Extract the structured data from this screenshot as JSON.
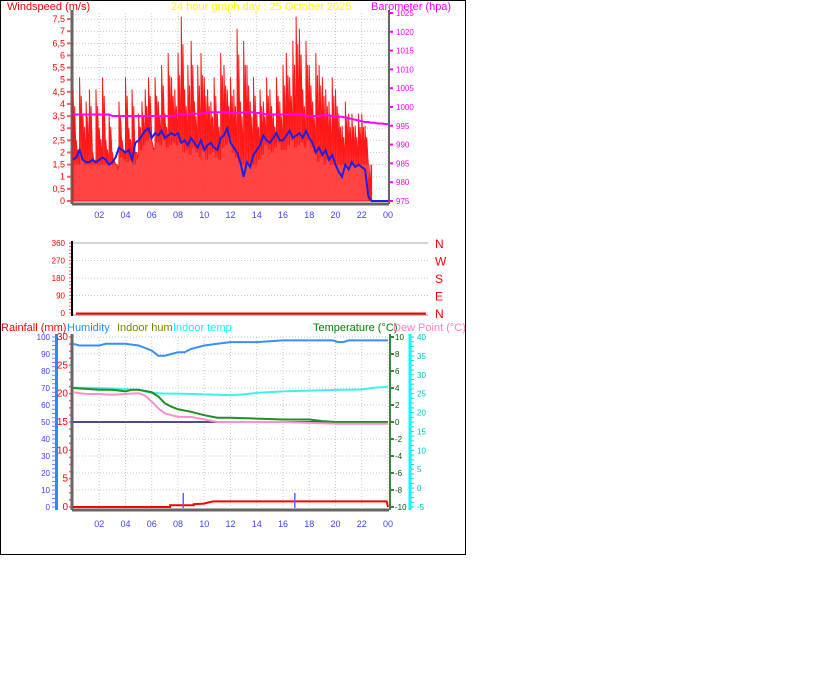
{
  "chart_data": [
    {
      "type": "line",
      "title": "24 hour graph day : 25 October 2025",
      "ylabel": "Windspeed (m/s)",
      "y2label": "Barometer (hpa)",
      "x_ticks": [
        "02",
        "04",
        "06",
        "08",
        "10",
        "12",
        "14",
        "16",
        "18",
        "20",
        "22",
        "00"
      ],
      "ylim": [
        0,
        7.75
      ],
      "y_ticks": [
        "0",
        "0,5",
        "1",
        "1,5",
        "2",
        "2,5",
        "3",
        "3,5",
        "4",
        "4,5",
        "5",
        "5,5",
        "6",
        "6,5",
        "7",
        "7,5"
      ],
      "y2lim": [
        975,
        1025
      ],
      "y2_ticks": [
        "975",
        "980",
        "985",
        "990",
        "995",
        "1000",
        "1005",
        "1010",
        "1015",
        "1020",
        "1025"
      ],
      "grid": true,
      "colors": {
        "gust": "#ff0000",
        "average": "#2020e0",
        "barometer": "#ff00ff"
      },
      "x_step_hours": 0.25,
      "series": [
        {
          "key": "gust",
          "values": [
            4.6,
            2.5,
            5.1,
            3.6,
            4.1,
            4.6,
            2.0,
            4.6,
            3.0,
            5.1,
            2.5,
            3.6,
            2.0,
            1.5,
            4.1,
            2.5,
            5.1,
            3.0,
            4.6,
            2.0,
            3.6,
            4.1,
            4.6,
            5.1,
            2.5,
            5.1,
            4.1,
            5.6,
            3.6,
            6.1,
            5.1,
            4.6,
            6.1,
            7.6,
            4.6,
            5.6,
            6.6,
            4.1,
            5.6,
            6.1,
            5.1,
            4.6,
            4.1,
            5.1,
            3.6,
            6.1,
            5.6,
            4.6,
            5.1,
            4.6,
            7.1,
            4.1,
            6.6,
            5.6,
            4.1,
            5.1,
            3.6,
            4.6,
            4.1,
            5.1,
            4.6,
            3.6,
            5.1,
            4.1,
            5.6,
            6.1,
            5.1,
            6.6,
            7.6,
            7.1,
            4.6,
            6.6,
            5.6,
            4.1,
            6.1,
            5.6,
            5.1,
            4.6,
            4.1,
            5.1,
            4.6,
            3.6,
            3.1,
            4.1,
            3.6,
            3.6,
            3.1,
            3.6,
            3.6,
            3.1,
            0,
            0,
            0,
            0,
            0,
            0,
            0
          ]
        },
        {
          "key": "average",
          "values": [
            1.7,
            1.8,
            2.1,
            1.7,
            1.6,
            1.6,
            1.7,
            1.6,
            1.7,
            1.8,
            1.7,
            1.5,
            1.6,
            1.8,
            2.2,
            2.1,
            2.0,
            2.1,
            1.7,
            2.4,
            2.5,
            2.7,
            2.9,
            3.0,
            2.6,
            2.8,
            2.7,
            2.9,
            2.6,
            2.7,
            2.8,
            2.7,
            2.8,
            2.4,
            2.5,
            2.3,
            2.6,
            2.4,
            2.2,
            2.5,
            2.1,
            2.3,
            2.4,
            2.2,
            2.1,
            2.6,
            2.7,
            3.0,
            2.4,
            2.2,
            2.0,
            1.6,
            1.0,
            1.6,
            1.4,
            1.9,
            2.1,
            2.3,
            2.7,
            2.5,
            2.4,
            2.6,
            2.8,
            2.5,
            2.5,
            2.7,
            2.9,
            2.6,
            2.7,
            2.8,
            2.6,
            2.9,
            2.6,
            2.4,
            2.0,
            2.2,
            1.9,
            2.1,
            1.7,
            1.9,
            1.5,
            1.2,
            1.0,
            1.5,
            1.3,
            1.6,
            1.4,
            1.5,
            1.4,
            1.3,
            0.2,
            0,
            0,
            0,
            0,
            0,
            0
          ]
        },
        {
          "key": "barometer",
          "values": [
            998,
            998,
            998,
            998,
            998,
            998,
            998,
            998,
            998,
            998,
            998,
            998,
            997.6,
            997.6,
            997.6,
            997.6,
            997.6,
            997.6,
            997.6,
            997.6,
            997.6,
            997.6,
            997.6,
            997.6,
            997.6,
            997.6,
            997.6,
            997.6,
            997.6,
            997.6,
            997.6,
            997.6,
            998,
            998,
            998,
            998,
            998.2,
            998.2,
            998.2,
            998.2,
            998.4,
            998.4,
            998.6,
            998.6,
            998.6,
            998.6,
            998.6,
            998.6,
            998.4,
            998.4,
            998.4,
            998.4,
            998.6,
            998.6,
            998.6,
            998.6,
            998.4,
            998.4,
            998.2,
            998,
            998,
            998,
            998,
            998,
            998,
            998,
            998,
            998,
            998,
            998,
            998,
            997.6,
            997.6,
            997.6,
            997.6,
            997.6,
            997.8,
            997.8,
            997.8,
            997.6,
            997.6,
            997.4,
            997.4,
            997.2,
            997,
            996.8,
            996.6,
            996.4,
            996.2,
            996,
            996,
            995.8,
            995.8,
            995.6,
            995.6,
            995.5,
            995.4
          ]
        }
      ]
    },
    {
      "type": "line",
      "ylabel": "",
      "ylim": [
        0,
        360
      ],
      "y_ticks": [
        "0",
        "90",
        "180",
        "270",
        "360"
      ],
      "y2_ticks": [
        "N",
        "E",
        "S",
        "W",
        "N"
      ],
      "colors": {
        "direction": "#ff0000"
      },
      "series": [
        {
          "key": "direction",
          "x": [
            0,
            24
          ],
          "values": [
            0,
            0
          ]
        }
      ]
    },
    {
      "type": "line",
      "legend": [
        {
          "label": "Rainfall (mm)",
          "color": "#ff0000"
        },
        {
          "label": "Humidity",
          "color": "#1e90ff"
        },
        {
          "label": "Indoor hum",
          "color": "#808000"
        },
        {
          "label": "Indoor temp",
          "color": "#00ffff"
        },
        {
          "label": "Temperature (°C)",
          "color": "#008000"
        },
        {
          "label": "Dew Point (°C)",
          "color": "#ff80c0"
        }
      ],
      "x_ticks": [
        "02",
        "04",
        "06",
        "08",
        "10",
        "12",
        "14",
        "16",
        "18",
        "20",
        "22",
        "00"
      ],
      "axes": {
        "humidity": {
          "lim": [
            0,
            100
          ],
          "ticks": [
            "0",
            "10",
            "20",
            "30",
            "40",
            "50",
            "60",
            "70",
            "80",
            "90",
            "100"
          ],
          "color": "#4040ff"
        },
        "rainfall": {
          "lim": [
            0,
            30
          ],
          "ticks": [
            "0",
            "5",
            "10",
            "15",
            "20",
            "25",
            "30"
          ],
          "color": "#ff0000"
        },
        "temperature": {
          "lim": [
            -10,
            10
          ],
          "ticks": [
            "-10",
            "-8",
            "-6",
            "-4",
            "-2",
            "0",
            "2",
            "4",
            "6",
            "8",
            "10"
          ],
          "color": "#006000"
        },
        "indoor_temp": {
          "lim": [
            -5,
            40
          ],
          "ticks": [
            "-5",
            "0",
            "5",
            "10",
            "15",
            "20",
            "25",
            "30",
            "35",
            "40"
          ],
          "color": "#00c0c0"
        }
      },
      "grid": true,
      "series": [
        {
          "key": "humidity",
          "axis": "humidity",
          "color": "#3a8ff0",
          "x": [
            0,
            0.5,
            1,
            2,
            2.5,
            3,
            4,
            5,
            6,
            6.5,
            7,
            7.5,
            8,
            8.5,
            9,
            10,
            11,
            12,
            14,
            16,
            18,
            19.8,
            20.2,
            20.6,
            21,
            24
          ],
          "values": [
            96,
            95,
            95,
            95,
            96,
            96,
            96,
            95,
            92,
            89,
            89,
            90,
            91,
            91,
            93,
            95,
            96,
            97,
            97,
            98,
            98,
            98,
            97,
            97,
            98,
            98
          ]
        },
        {
          "key": "indoor_hum",
          "axis": "humidity",
          "color": "#504890",
          "x": [
            0,
            24
          ],
          "values": [
            50,
            50
          ]
        },
        {
          "key": "indoor_temp",
          "axis": "indoor_temp",
          "color": "#40f0f0",
          "x": [
            0,
            2,
            4,
            5,
            6,
            7,
            8,
            10,
            12,
            13,
            14,
            15,
            16,
            18,
            20,
            22,
            23,
            24
          ],
          "values": [
            26.6,
            26.5,
            26.2,
            26.0,
            25.2,
            25.0,
            25.0,
            24.8,
            24.6,
            24.8,
            25.2,
            25.4,
            25.6,
            25.8,
            26.0,
            26.1,
            26.6,
            26.8
          ]
        },
        {
          "key": "temperature",
          "axis": "temperature",
          "color": "#209020",
          "x": [
            0,
            1,
            2,
            3,
            4,
            4.5,
            5,
            6,
            6.5,
            7,
            7.5,
            8,
            9,
            10,
            11,
            12,
            14,
            16,
            18,
            19,
            20,
            22,
            24
          ],
          "values": [
            4.0,
            3.9,
            3.8,
            3.8,
            3.6,
            3.8,
            3.8,
            3.5,
            3.0,
            2.2,
            1.8,
            1.5,
            1.2,
            0.8,
            0.5,
            0.5,
            0.4,
            0.3,
            0.3,
            0.1,
            0,
            0,
            0
          ]
        },
        {
          "key": "dew_point",
          "axis": "temperature",
          "color": "#ff90c8",
          "x": [
            0,
            1,
            2,
            3,
            4,
            5,
            5.5,
            6,
            6.5,
            7,
            8,
            9,
            10,
            11,
            12,
            14,
            16,
            18,
            20,
            22,
            24
          ],
          "values": [
            3.5,
            3.3,
            3.3,
            3.2,
            3.3,
            3.4,
            3.1,
            2.4,
            1.6,
            1.0,
            0.6,
            0.6,
            0.3,
            0.0,
            0.0,
            0.0,
            0.0,
            -0.1,
            -0.2,
            -0.2,
            -0.2
          ]
        },
        {
          "key": "rainfall",
          "axis": "rainfall",
          "color": "#ff0000",
          "x": [
            0,
            7.4,
            7.4,
            9.2,
            9.2,
            10,
            10.3,
            10.7,
            23.8,
            23.9,
            24
          ],
          "values": [
            0,
            0,
            0.3,
            0.3,
            0.5,
            0.6,
            0.8,
            1.0,
            1.0,
            1.0,
            0
          ]
        }
      ],
      "rain_rate_markers": {
        "color": "#6060ff",
        "x_hours": [
          8.4,
          16.9
        ]
      }
    }
  ]
}
